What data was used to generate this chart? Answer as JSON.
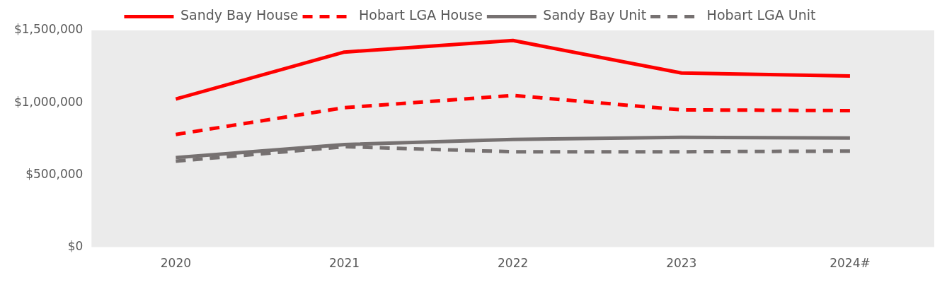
{
  "chart_data": {
    "type": "line",
    "categories": [
      "2020",
      "2021",
      "2022",
      "2023",
      "2024#"
    ],
    "series": [
      {
        "name": "Sandy Bay House",
        "color": "#ff0000",
        "line_style": "solid",
        "values": [
          1025000,
          1350000,
          1430000,
          1205000,
          1185000
        ]
      },
      {
        "name": "Hobart LGA House",
        "color": "#ff0000",
        "line_style": "dashed",
        "values": [
          780000,
          965000,
          1050000,
          950000,
          945000
        ]
      },
      {
        "name": "Sandy Bay Unit",
        "color": "#767171",
        "line_style": "solid",
        "values": [
          620000,
          710000,
          745000,
          760000,
          755000
        ]
      },
      {
        "name": "Hobart LGA Unit",
        "color": "#767171",
        "line_style": "dashed",
        "values": [
          595000,
          695000,
          660000,
          660000,
          665000
        ]
      }
    ],
    "ylim": [
      0,
      1500000
    ],
    "yticks": [
      {
        "value": 0,
        "label": "$0"
      },
      {
        "value": 500000,
        "label": "$500,000"
      },
      {
        "value": 1000000,
        "label": "$1,000,000"
      },
      {
        "value": 1500000,
        "label": "$1,500,000"
      }
    ],
    "grid": false,
    "legend": "top",
    "marker": "none"
  }
}
